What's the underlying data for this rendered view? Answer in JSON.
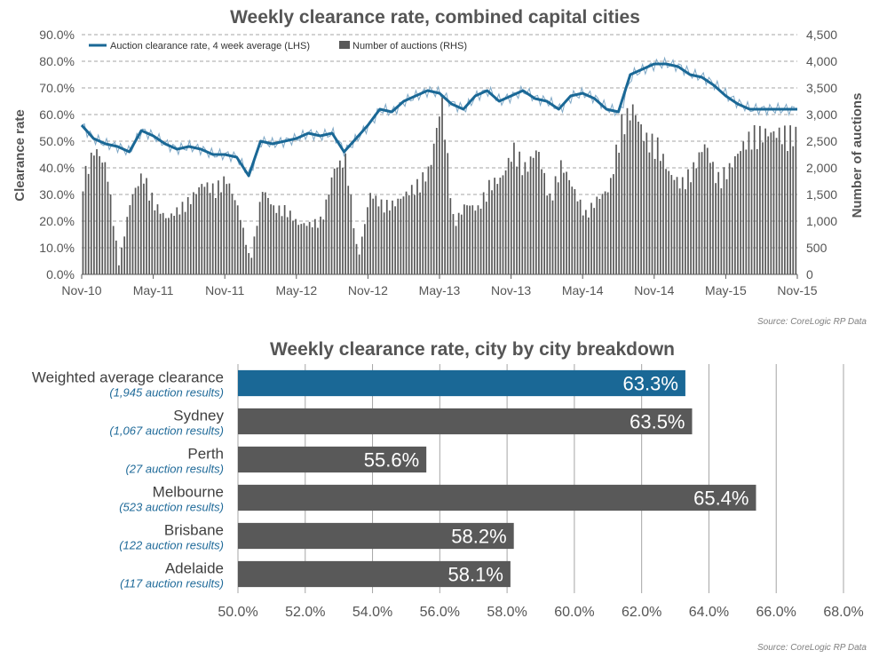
{
  "chart_data": [
    {
      "type": "line",
      "title": "Weekly clearance rate, combined capital cities",
      "ylabel": "Clearance rate",
      "y2label": "Number of auctions",
      "source": "Source: CoreLogic  RP Data",
      "x_ticks": [
        "Nov-10",
        "May-11",
        "Nov-11",
        "May-12",
        "Nov-12",
        "May-13",
        "Nov-13",
        "May-14",
        "Nov-14",
        "May-15",
        "Nov-15"
      ],
      "y_ticks": [
        "0.0%",
        "10.0%",
        "20.0%",
        "30.0%",
        "40.0%",
        "50.0%",
        "60.0%",
        "70.0%",
        "80.0%",
        "90.0%"
      ],
      "y2_ticks": [
        "0",
        "500",
        "1,000",
        "1,500",
        "2,000",
        "2,500",
        "3,000",
        "3,500",
        "4,000",
        "4,500"
      ],
      "ylim": [
        0,
        90
      ],
      "y2lim": [
        0,
        4500
      ],
      "grid": true,
      "legend_position": "top-left",
      "colors": {
        "line": "#1a6896",
        "weekly_line": "#7fa8c6",
        "bars": "#595959"
      },
      "series": [
        {
          "name": "Auction clearance rate, 4 week average (LHS)",
          "axis": "left",
          "kind": "line",
          "x_month_index": [
            0,
            1,
            2,
            3,
            4,
            5,
            6,
            7,
            8,
            9,
            10,
            11,
            12,
            13,
            14,
            15,
            16,
            17,
            18,
            19,
            20,
            21,
            22,
            23,
            24,
            25,
            26,
            27,
            28,
            29,
            30,
            31,
            32,
            33,
            34,
            35,
            36,
            37,
            38,
            39,
            40,
            41,
            42,
            43,
            44,
            45,
            46,
            47,
            48,
            49,
            50,
            51,
            52,
            53,
            54,
            55,
            56,
            57,
            58,
            59,
            60
          ],
          "values": [
            56,
            51,
            49,
            48,
            46,
            54,
            52,
            49,
            47,
            48,
            47,
            45,
            45,
            44,
            37,
            50,
            49,
            50,
            51,
            53,
            52,
            53,
            46,
            51,
            56,
            62,
            61,
            65,
            67,
            69,
            68,
            64,
            62,
            67,
            69,
            65,
            67,
            69,
            66,
            65,
            62,
            67,
            68,
            66,
            62,
            61,
            75,
            77,
            79,
            79,
            78,
            75,
            74,
            71,
            67,
            64,
            62,
            62,
            62,
            62,
            62
          ]
        },
        {
          "name": "Number of auctions (RHS)",
          "axis": "right",
          "kind": "bar",
          "x_month_index": [
            0,
            1,
            2,
            3,
            4,
            5,
            6,
            7,
            8,
            9,
            10,
            11,
            12,
            13,
            14,
            15,
            16,
            17,
            18,
            19,
            20,
            21,
            22,
            23,
            24,
            25,
            26,
            27,
            28,
            29,
            30,
            31,
            32,
            33,
            34,
            35,
            36,
            37,
            38,
            39,
            40,
            41,
            42,
            43,
            44,
            45,
            46,
            47,
            48,
            49,
            50,
            51,
            52,
            53,
            54,
            55,
            56
          ],
          "values": [
            1900,
            2500,
            2100,
            200,
            1500,
            2000,
            1400,
            1100,
            1300,
            1500,
            1800,
            1700,
            1900,
            1300,
            250,
            1700,
            1300,
            1300,
            1000,
            1000,
            1100,
            2100,
            2300,
            300,
            1600,
            1400,
            1400,
            1600,
            1800,
            2100,
            3500,
            1000,
            1400,
            1300,
            1800,
            1900,
            2500,
            2100,
            2500,
            1500,
            2200,
            1700,
            1200,
            1500,
            1700,
            3000,
            3300,
            2700,
            2600,
            2000,
            1800,
            2100,
            2600,
            1900,
            2100,
            2500,
            2800
          ]
        }
      ]
    },
    {
      "type": "bar",
      "orientation": "horizontal",
      "title": "Weekly clearance rate, city by city breakdown",
      "source": "Source: CoreLogic  RP Data",
      "categories": [
        "Weighted average clearance",
        "Sydney",
        "Perth",
        "Melbourne",
        "Brisbane",
        "Adelaide"
      ],
      "subtitles": [
        "(1,945 auction results)",
        "(1,067 auction results)",
        "(27 auction results)",
        "(523 auction results)",
        "(122 auction results)",
        "(117 auction results)"
      ],
      "values": [
        63.3,
        63.5,
        55.6,
        65.4,
        58.2,
        58.1
      ],
      "value_labels": [
        "63.3%",
        "63.5%",
        "55.6%",
        "65.4%",
        "58.2%",
        "58.1%"
      ],
      "x_ticks": [
        "50.0%",
        "52.0%",
        "54.0%",
        "56.0%",
        "58.0%",
        "60.0%",
        "62.0%",
        "64.0%",
        "66.0%",
        "68.0%"
      ],
      "xlim": [
        50,
        68
      ],
      "grid": true,
      "colors": {
        "highlight": "#1a6896",
        "bars": "#595959",
        "subtitle": "#1f6a99"
      }
    }
  ]
}
